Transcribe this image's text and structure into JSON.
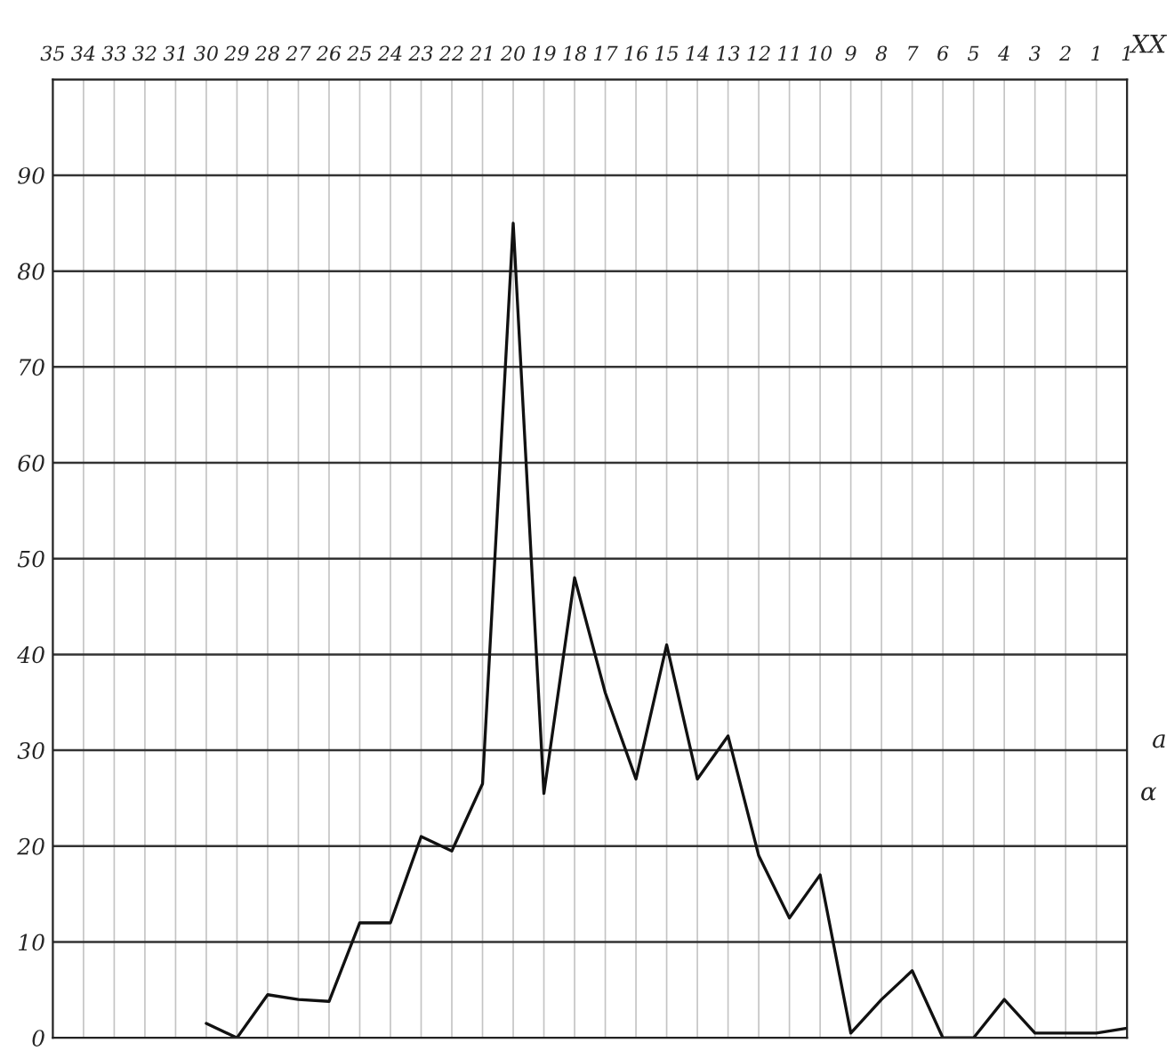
{
  "chart_data": {
    "type": "line",
    "categories": [
      "35",
      "34",
      "33",
      "32",
      "31",
      "30",
      "29",
      "28",
      "27",
      "26",
      "25",
      "24",
      "23",
      "22",
      "21",
      "20",
      "19",
      "18",
      "17",
      "16",
      "15",
      "14",
      "13",
      "12",
      "11",
      "10",
      "9",
      "8",
      "7",
      "6",
      "5",
      "4",
      "3",
      "2",
      "1",
      "1"
    ],
    "series": [
      {
        "color": "#111111",
        "values": [
          null,
          null,
          null,
          null,
          null,
          1.5,
          0,
          4.5,
          4,
          3.8,
          12,
          12,
          21,
          19.5,
          26.5,
          85,
          25.5,
          48,
          36,
          27,
          41,
          27,
          31.5,
          19,
          12.5,
          17,
          0.5,
          4,
          7,
          0,
          0,
          4,
          0.5,
          0.5,
          0.5,
          1
        ]
      }
    ],
    "ylim": [
      0,
      100
    ],
    "yticks": [
      0,
      10,
      20,
      30,
      40,
      50,
      60,
      70,
      80,
      90,
      {
        "value": 100,
        "label": null
      }
    ],
    "grid": true,
    "marker": "none",
    "line_style": "solid",
    "annotations": [
      "XX",
      "a",
      "α"
    ]
  }
}
